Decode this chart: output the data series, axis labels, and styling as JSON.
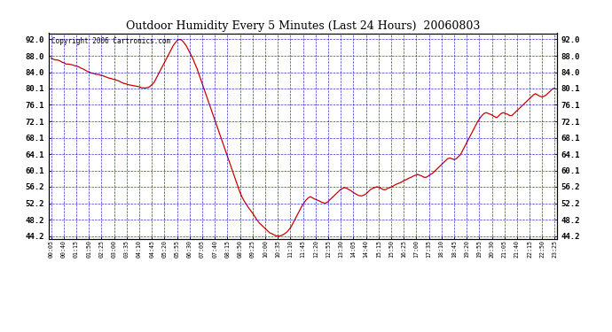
{
  "title": "Outdoor Humidity Every 5 Minutes (Last 24 Hours)  20060803",
  "copyright": "Copyright 2006 Cartronics.com",
  "background_color": "#ffffff",
  "plot_bg_color": "#ffffff",
  "grid_color": "#0000cc",
  "line_color": "#cc0000",
  "yticks": [
    44.2,
    48.2,
    52.2,
    56.2,
    60.1,
    64.1,
    68.1,
    72.1,
    76.1,
    80.1,
    84.0,
    88.0,
    92.0
  ],
  "ylim": [
    43.5,
    93.5
  ],
  "xtick_labels": [
    "00:05",
    "00:40",
    "01:15",
    "01:50",
    "02:25",
    "03:00",
    "03:35",
    "04:10",
    "04:45",
    "05:20",
    "05:55",
    "06:30",
    "07:05",
    "07:40",
    "08:15",
    "08:50",
    "09:25",
    "10:00",
    "10:35",
    "11:10",
    "11:45",
    "12:20",
    "12:55",
    "13:30",
    "14:05",
    "14:40",
    "15:15",
    "15:50",
    "16:25",
    "17:00",
    "17:35",
    "18:10",
    "18:45",
    "19:20",
    "19:55",
    "20:30",
    "21:05",
    "21:40",
    "22:15",
    "22:50",
    "23:25"
  ],
  "humidity_values": [
    87.5,
    87.2,
    87.0,
    87.0,
    86.8,
    86.5,
    86.3,
    86.0,
    86.0,
    85.9,
    85.8,
    85.6,
    85.5,
    85.3,
    85.0,
    84.8,
    84.5,
    84.2,
    84.0,
    83.8,
    83.7,
    83.5,
    83.5,
    83.3,
    83.2,
    83.0,
    82.8,
    82.6,
    82.5,
    82.3,
    82.2,
    82.0,
    81.8,
    81.5,
    81.3,
    81.2,
    81.0,
    80.9,
    80.8,
    80.7,
    80.6,
    80.5,
    80.3,
    80.2,
    80.2,
    80.3,
    80.5,
    81.0,
    81.5,
    82.5,
    83.5,
    84.5,
    85.5,
    86.5,
    87.5,
    88.5,
    89.5,
    90.5,
    91.2,
    91.8,
    92.0,
    91.8,
    91.2,
    90.5,
    89.5,
    88.5,
    87.5,
    86.2,
    85.0,
    83.5,
    82.0,
    80.5,
    79.0,
    77.5,
    76.0,
    74.5,
    73.0,
    71.5,
    70.0,
    68.5,
    67.0,
    65.5,
    64.0,
    62.5,
    61.0,
    59.5,
    58.0,
    56.5,
    55.0,
    53.8,
    52.8,
    52.0,
    51.2,
    50.5,
    49.8,
    49.0,
    48.2,
    47.5,
    47.0,
    46.5,
    46.0,
    45.5,
    45.0,
    44.8,
    44.5,
    44.3,
    44.2,
    44.3,
    44.5,
    44.8,
    45.2,
    45.8,
    46.5,
    47.5,
    48.5,
    49.5,
    50.5,
    51.5,
    52.3,
    53.0,
    53.5,
    53.8,
    53.5,
    53.2,
    53.0,
    52.8,
    52.5,
    52.3,
    52.2,
    52.5,
    53.0,
    53.5,
    54.0,
    54.5,
    55.0,
    55.5,
    55.8,
    56.0,
    55.8,
    55.5,
    55.2,
    54.8,
    54.5,
    54.2,
    54.0,
    54.0,
    54.2,
    54.5,
    55.0,
    55.5,
    55.8,
    56.0,
    56.2,
    56.0,
    55.8,
    55.5,
    55.5,
    55.8,
    56.0,
    56.2,
    56.5,
    56.8,
    57.0,
    57.2,
    57.5,
    57.8,
    58.0,
    58.3,
    58.5,
    58.8,
    59.0,
    59.2,
    59.0,
    58.8,
    58.5,
    58.5,
    58.8,
    59.2,
    59.5,
    60.0,
    60.5,
    61.0,
    61.5,
    62.0,
    62.5,
    63.0,
    63.2,
    63.0,
    62.8,
    63.0,
    63.5,
    64.0,
    65.0,
    66.0,
    67.0,
    68.0,
    69.0,
    70.0,
    71.0,
    72.0,
    72.8,
    73.5,
    74.0,
    74.2,
    74.0,
    73.8,
    73.5,
    73.2,
    73.0,
    73.5,
    74.0,
    74.2,
    74.0,
    73.8,
    73.5,
    73.5,
    74.0,
    74.5,
    75.0,
    75.5,
    76.0,
    76.5,
    77.0,
    77.5,
    78.0,
    78.5,
    78.8,
    78.5,
    78.2,
    78.0,
    78.2,
    78.5,
    79.0,
    79.5,
    80.0,
    80.2
  ]
}
